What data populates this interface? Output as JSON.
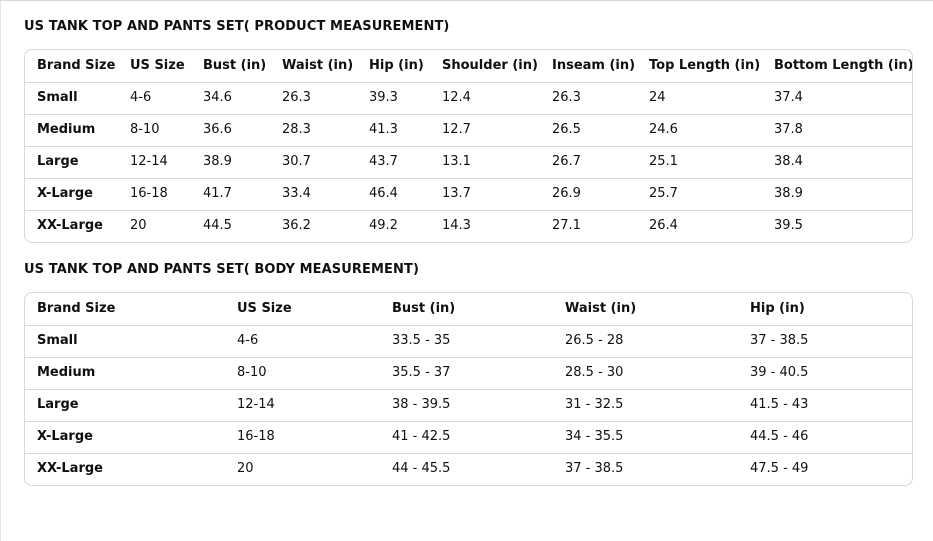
{
  "product_section": {
    "title": "US TANK TOP AND PANTS SET( PRODUCT MEASUREMENT)",
    "headers": [
      "Brand Size",
      "US Size",
      "Bust (in)",
      "Waist (in)",
      "Hip (in)",
      "Shoulder (in)",
      "Inseam (in)",
      "Top Length (in)",
      "Bottom Length (in)"
    ],
    "rows": [
      [
        "Small",
        "4-6",
        "34.6",
        "26.3",
        "39.3",
        "12.4",
        "26.3",
        "24",
        "37.4"
      ],
      [
        "Medium",
        "8-10",
        "36.6",
        "28.3",
        "41.3",
        "12.7",
        "26.5",
        "24.6",
        "37.8"
      ],
      [
        "Large",
        "12-14",
        "38.9",
        "30.7",
        "43.7",
        "13.1",
        "26.7",
        "25.1",
        "38.4"
      ],
      [
        "X-Large",
        "16-18",
        "41.7",
        "33.4",
        "46.4",
        "13.7",
        "26.9",
        "25.7",
        "38.9"
      ],
      [
        "XX-Large",
        "20",
        "44.5",
        "36.2",
        "49.2",
        "14.3",
        "27.1",
        "26.4",
        "39.5"
      ]
    ]
  },
  "body_section": {
    "title": "US TANK TOP AND PANTS SET( BODY MEASUREMENT)",
    "headers": [
      "Brand Size",
      "US Size",
      "Bust (in)",
      "Waist (in)",
      "Hip (in)"
    ],
    "rows": [
      [
        "Small",
        "4-6",
        "33.5 - 35",
        "26.5 - 28",
        "37 - 38.5"
      ],
      [
        "Medium",
        "8-10",
        "35.5 - 37",
        "28.5 - 30",
        "39 - 40.5"
      ],
      [
        "Large",
        "12-14",
        "38 - 39.5",
        "31 - 32.5",
        "41.5 - 43"
      ],
      [
        "X-Large",
        "16-18",
        "41 - 42.5",
        "34 - 35.5",
        "44.5 - 46"
      ],
      [
        "XX-Large",
        "20",
        "44 - 45.5",
        "37 - 38.5",
        "47.5 - 49"
      ]
    ]
  }
}
